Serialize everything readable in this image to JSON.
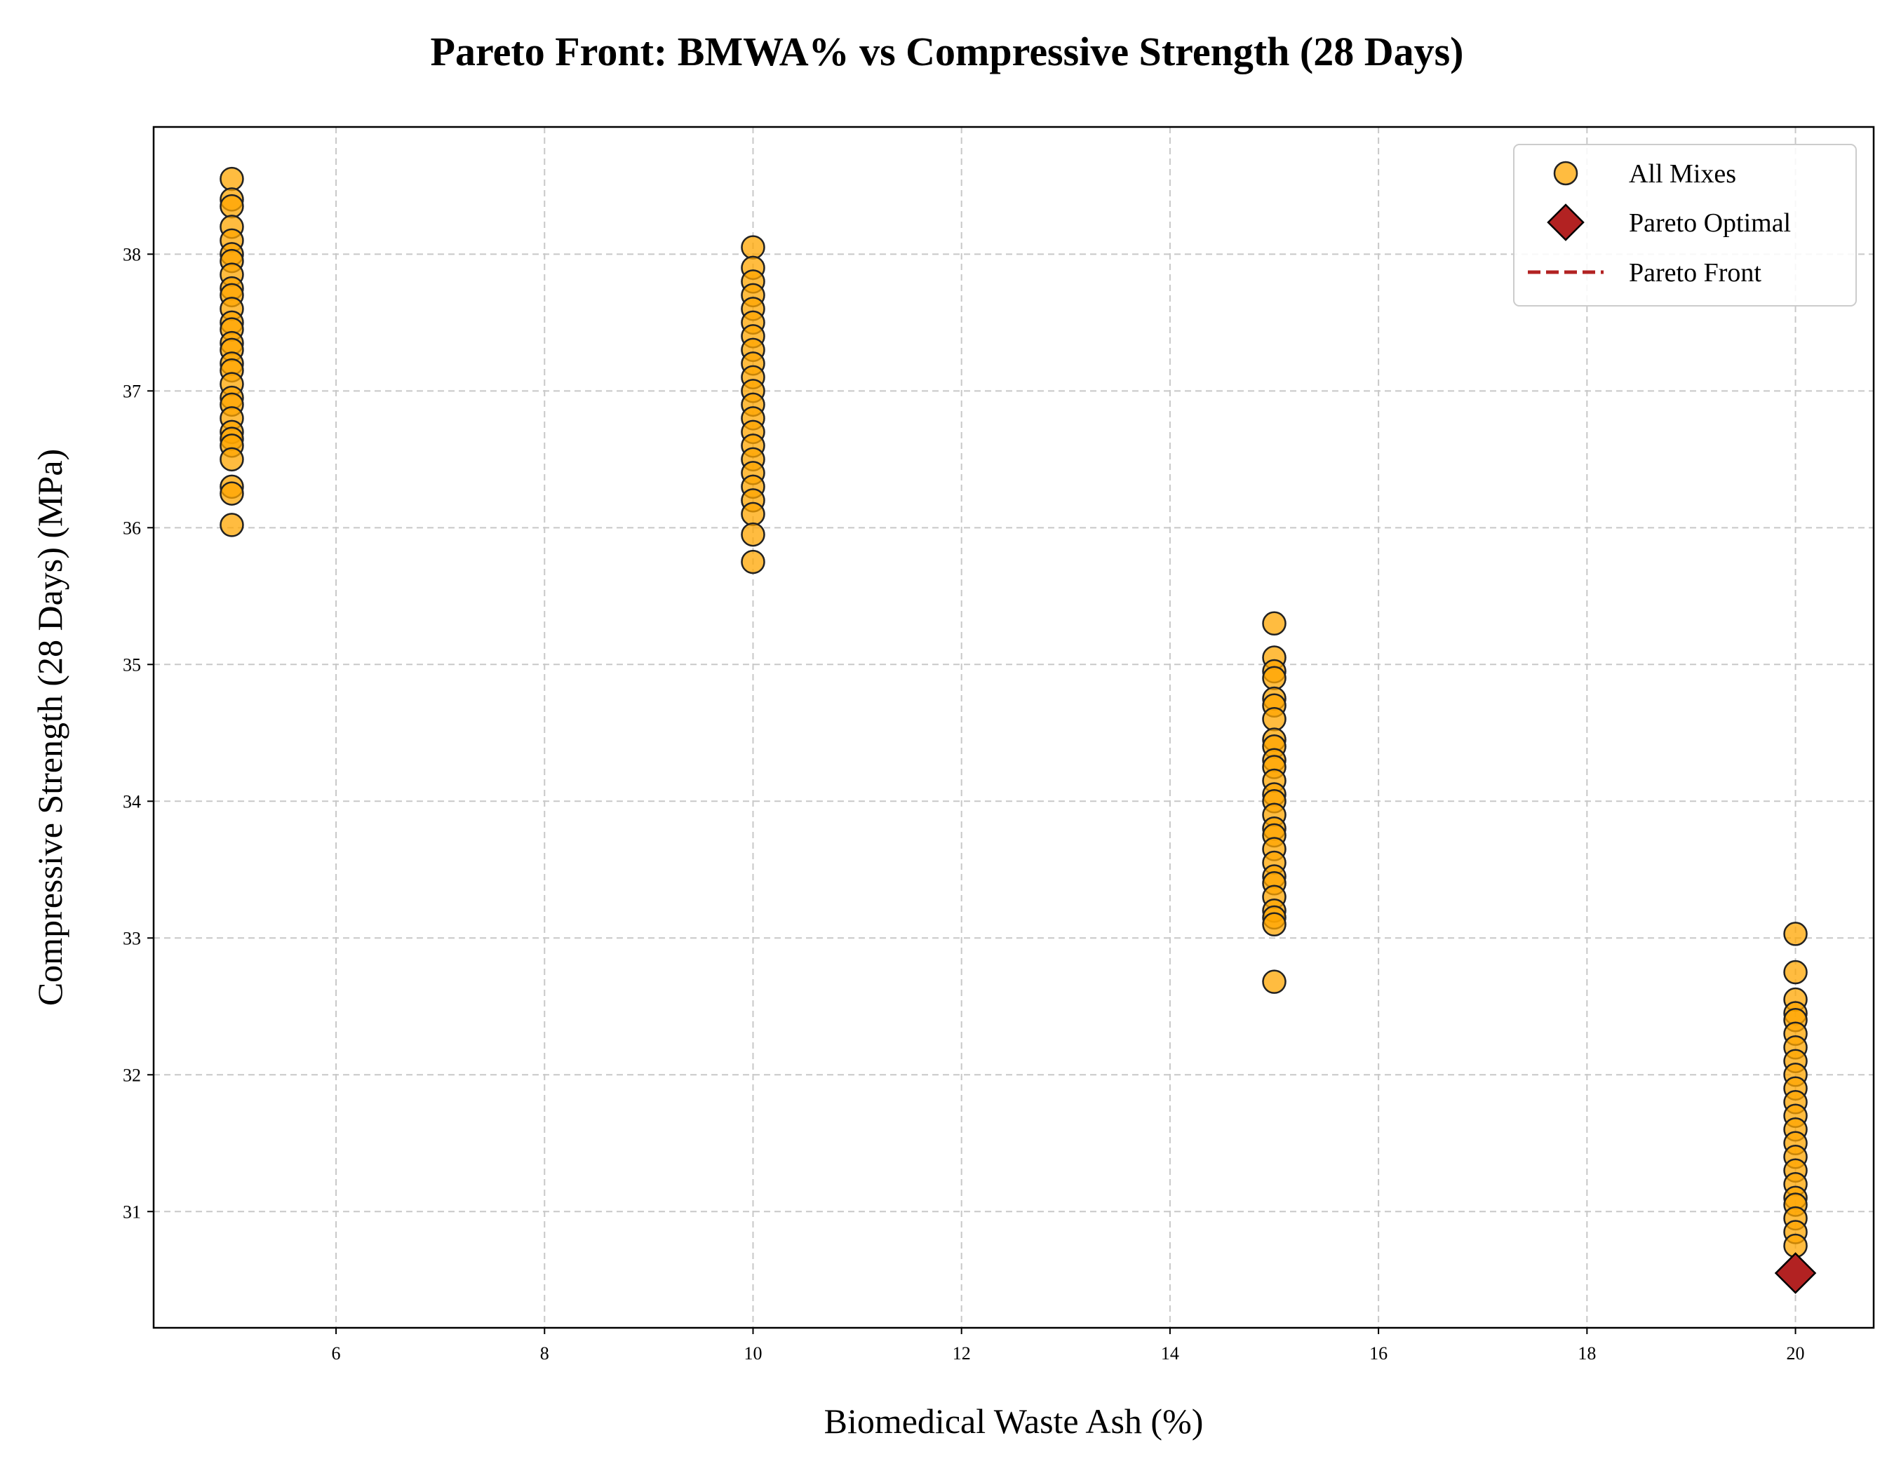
{
  "chart_data": {
    "type": "scatter",
    "title": "Pareto Front: BMWA% vs Compressive Strength (28 Days)",
    "xlabel": "Biomedical Waste Ash (%)",
    "ylabel": "Compressive Strength (28 Days) (MPa)",
    "xlim": [
      4.25,
      20.75
    ],
    "ylim": [
      30.15,
      38.93
    ],
    "xticks": [
      6,
      8,
      10,
      12,
      14,
      16,
      18,
      20
    ],
    "yticks": [
      31,
      32,
      33,
      34,
      35,
      36,
      37,
      38
    ],
    "grid": true,
    "legend_position": "top-right",
    "series": [
      {
        "name": "All Mixes",
        "marker": "circle",
        "color": "#FFA500",
        "edge_color": "#222222",
        "points": [
          [
            5,
            38.55
          ],
          [
            5,
            38.4
          ],
          [
            5,
            38.35
          ],
          [
            5,
            38.2
          ],
          [
            5,
            38.1
          ],
          [
            5,
            38.0
          ],
          [
            5,
            37.95
          ],
          [
            5,
            37.85
          ],
          [
            5,
            37.75
          ],
          [
            5,
            37.7
          ],
          [
            5,
            37.6
          ],
          [
            5,
            37.5
          ],
          [
            5,
            37.45
          ],
          [
            5,
            37.35
          ],
          [
            5,
            37.3
          ],
          [
            5,
            37.2
          ],
          [
            5,
            37.15
          ],
          [
            5,
            37.05
          ],
          [
            5,
            36.95
          ],
          [
            5,
            36.9
          ],
          [
            5,
            36.8
          ],
          [
            5,
            36.7
          ],
          [
            5,
            36.65
          ],
          [
            5,
            36.6
          ],
          [
            5,
            36.5
          ],
          [
            5,
            36.3
          ],
          [
            5,
            36.25
          ],
          [
            5,
            36.02
          ],
          [
            10,
            38.05
          ],
          [
            10,
            37.9
          ],
          [
            10,
            37.8
          ],
          [
            10,
            37.7
          ],
          [
            10,
            37.6
          ],
          [
            10,
            37.5
          ],
          [
            10,
            37.4
          ],
          [
            10,
            37.3
          ],
          [
            10,
            37.2
          ],
          [
            10,
            37.1
          ],
          [
            10,
            37.0
          ],
          [
            10,
            36.9
          ],
          [
            10,
            36.8
          ],
          [
            10,
            36.7
          ],
          [
            10,
            36.6
          ],
          [
            10,
            36.5
          ],
          [
            10,
            36.4
          ],
          [
            10,
            36.3
          ],
          [
            10,
            36.2
          ],
          [
            10,
            36.1
          ],
          [
            10,
            35.95
          ],
          [
            10,
            35.75
          ],
          [
            15,
            35.3
          ],
          [
            15,
            35.05
          ],
          [
            15,
            34.95
          ],
          [
            15,
            34.9
          ],
          [
            15,
            34.75
          ],
          [
            15,
            34.7
          ],
          [
            15,
            34.6
          ],
          [
            15,
            34.45
          ],
          [
            15,
            34.4
          ],
          [
            15,
            34.3
          ],
          [
            15,
            34.25
          ],
          [
            15,
            34.15
          ],
          [
            15,
            34.05
          ],
          [
            15,
            34.0
          ],
          [
            15,
            33.9
          ],
          [
            15,
            33.8
          ],
          [
            15,
            33.75
          ],
          [
            15,
            33.65
          ],
          [
            15,
            33.55
          ],
          [
            15,
            33.45
          ],
          [
            15,
            33.4
          ],
          [
            15,
            33.3
          ],
          [
            15,
            33.2
          ],
          [
            15,
            33.15
          ],
          [
            15,
            33.1
          ],
          [
            15,
            32.68
          ],
          [
            20,
            33.03
          ],
          [
            20,
            32.75
          ],
          [
            20,
            32.55
          ],
          [
            20,
            32.45
          ],
          [
            20,
            32.4
          ],
          [
            20,
            32.3
          ],
          [
            20,
            32.2
          ],
          [
            20,
            32.1
          ],
          [
            20,
            32.0
          ],
          [
            20,
            31.9
          ],
          [
            20,
            31.8
          ],
          [
            20,
            31.7
          ],
          [
            20,
            31.6
          ],
          [
            20,
            31.5
          ],
          [
            20,
            31.4
          ],
          [
            20,
            31.3
          ],
          [
            20,
            31.2
          ],
          [
            20,
            31.1
          ],
          [
            20,
            31.05
          ],
          [
            20,
            30.95
          ],
          [
            20,
            30.85
          ],
          [
            20,
            30.75
          ]
        ]
      },
      {
        "name": "Pareto Optimal",
        "marker": "diamond",
        "color": "#B22222",
        "edge_color": "#000000",
        "points": [
          [
            20,
            30.55
          ]
        ]
      },
      {
        "name": "Pareto Front",
        "marker": "dashed-line",
        "color": "#B22222",
        "points": [
          [
            20,
            30.55
          ]
        ]
      }
    ]
  }
}
